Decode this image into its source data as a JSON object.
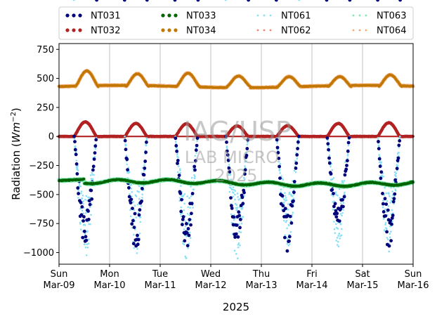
{
  "chart_data": {
    "type": "scatter",
    "title": "",
    "xlabel": "2025",
    "ylabel": "Radiation (Wm^-2)",
    "ylim": [
      -1100,
      800
    ],
    "xlim": [
      0,
      7
    ],
    "grid": "vertical at day ticks",
    "legend": "top, outside plot, 4 columns",
    "x_unit": "days since Sun Mar-09 2025",
    "xticks": [
      {
        "d": 0,
        "day": "Sun",
        "date": "Mar-09"
      },
      {
        "d": 1,
        "day": "Mon",
        "date": "Mar-10"
      },
      {
        "d": 2,
        "day": "Tue",
        "date": "Mar-11"
      },
      {
        "d": 3,
        "day": "Wed",
        "date": "Mar-12"
      },
      {
        "d": 4,
        "day": "Thu",
        "date": "Mar-13"
      },
      {
        "d": 5,
        "day": "Fri",
        "date": "Mar-14"
      },
      {
        "d": 6,
        "day": "Sat",
        "date": "Mar-15"
      },
      {
        "d": 7,
        "day": "Sun",
        "date": "Mar-16"
      }
    ],
    "yticks": [
      750,
      500,
      250,
      0,
      -250,
      -500,
      -750,
      -1000
    ],
    "series": [
      {
        "name": "NT031",
        "color": "#00007a",
        "style": "dots",
        "desc": "downward shortwave (negative), daytime troughs",
        "peaks": [
          -975,
          -1005,
          -965,
          -965,
          -1000,
          -860,
          -965
        ]
      },
      {
        "name": "NT032",
        "color": "#b22222",
        "style": "dots",
        "desc": "upward shortwave, daytime humps",
        "peaks": [
          125,
          112,
          108,
          90,
          92,
          112,
          118
        ]
      },
      {
        "name": "NT033",
        "color": "#006400",
        "style": "dots",
        "desc": "longwave, near -400",
        "base": -400
      },
      {
        "name": "NT034",
        "color": "#c07800",
        "style": "dots",
        "desc": "longwave, near 430 with afternoon humps",
        "peaks": [
          565,
          540,
          545,
          520,
          515,
          515,
          530
        ]
      },
      {
        "name": "NT061",
        "color": "#87e0f5",
        "style": "sparse-dots",
        "desc": "downward shortwave (negative)",
        "peaks": [
          -1060,
          -1040,
          -1060,
          -1070,
          -1000,
          -960,
          -1020
        ]
      },
      {
        "name": "NT062",
        "color": "#f08070",
        "style": "sparse-dots",
        "desc": "upward shortwave",
        "peaks": [
          125,
          112,
          108,
          90,
          92,
          112,
          118
        ]
      },
      {
        "name": "NT063",
        "color": "#7fe8b0",
        "style": "sparse-dots",
        "desc": "longwave near -400",
        "base": -400
      },
      {
        "name": "NT064",
        "color": "#f4a870",
        "style": "sparse-dots",
        "desc": "longwave near 430",
        "peaks": [
          565,
          540,
          545,
          520,
          515,
          515,
          530
        ]
      }
    ]
  },
  "watermark": {
    "line1": "IAG/USP",
    "line2": "LAB MICRO",
    "line3": "2025"
  },
  "ylabel_text": {
    "main": "Radiation (",
    "italic": "Wm",
    "sup": "−2",
    "close": ")"
  }
}
